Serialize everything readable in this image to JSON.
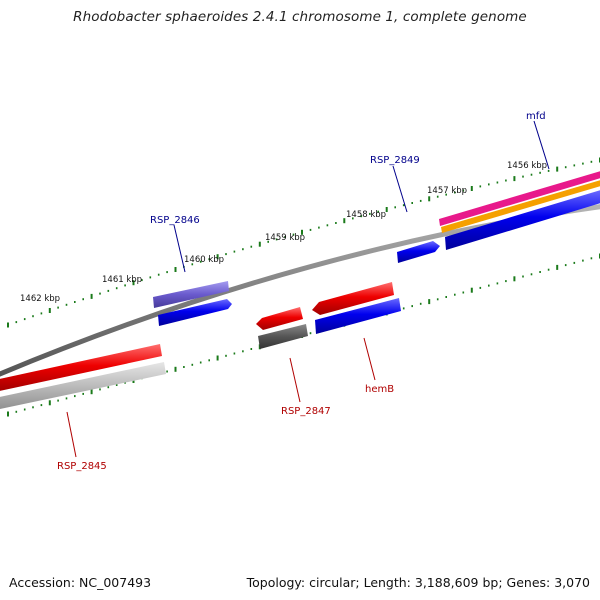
{
  "title": "Rhodobacter sphaeroides 2.4.1 chromosome 1, complete genome",
  "footer": {
    "accession": "Accession: NC_007493",
    "summary": "Topology: circular; Length: 3,188,609 bp; Genes: 3,070"
  },
  "tick_labels": [
    {
      "text": "1462 kbp",
      "pos_kbp": 1462
    },
    {
      "text": "1461 kbp",
      "pos_kbp": 1461
    },
    {
      "text": "1460 kbp",
      "pos_kbp": 1460
    },
    {
      "text": "1459 kbp",
      "pos_kbp": 1459
    },
    {
      "text": "1458 kbp",
      "pos_kbp": 1458
    },
    {
      "text": "1457 kbp",
      "pos_kbp": 1457
    },
    {
      "text": "1456 kbp",
      "pos_kbp": 1456
    }
  ],
  "gene_labels": [
    {
      "text": "mfd",
      "strand": "forward",
      "color": "#00008b"
    },
    {
      "text": "RSP_2849",
      "strand": "forward",
      "color": "#00008b"
    },
    {
      "text": "RSP_2846",
      "strand": "forward",
      "color": "#00008b"
    },
    {
      "text": "RSP_2847",
      "strand": "reverse",
      "color": "#b00000"
    },
    {
      "text": "hemB",
      "strand": "reverse",
      "color": "#b00000"
    },
    {
      "text": "RSP_2845",
      "strand": "reverse",
      "color": "#b00000"
    }
  ],
  "colors": {
    "backbone": "#808080",
    "ticks": "#1a7a1a",
    "forward_cds": "#0000ee",
    "reverse_cds": "#ee0000",
    "purple_feature": "#6a5acd",
    "dark_gray_feature": "#555555",
    "light_gray_feature": "#bbbbbb",
    "magenta_feature": "#e8198b",
    "orange_feature": "#f5a000"
  }
}
